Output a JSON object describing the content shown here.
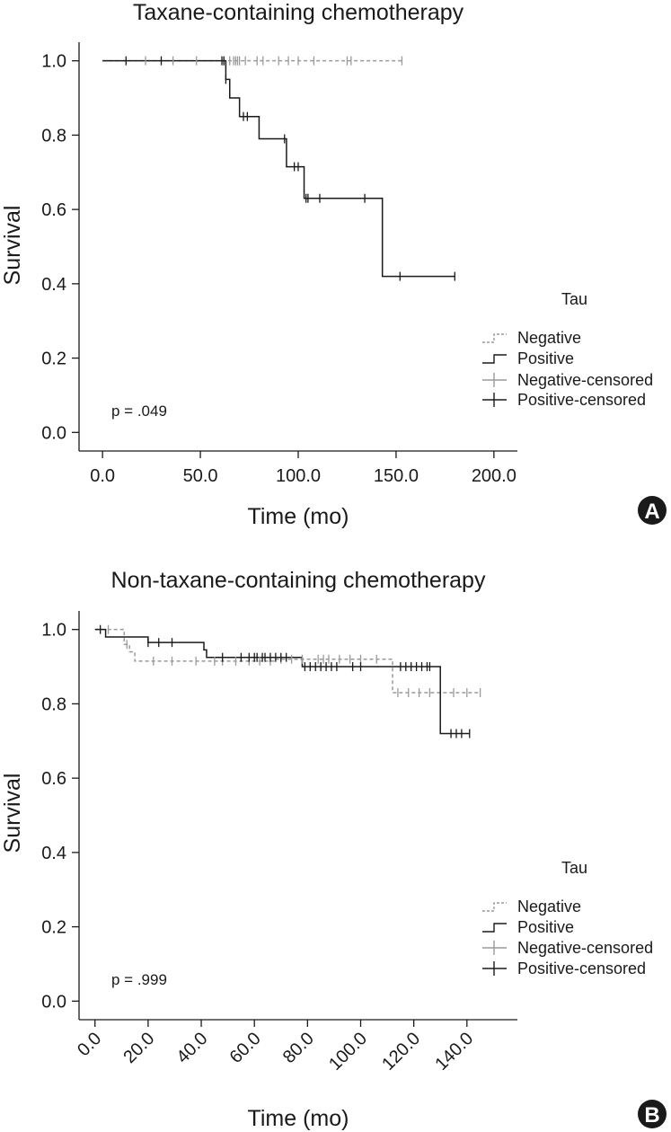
{
  "chart_data": [
    {
      "type": "line",
      "panel_label": "A",
      "title": "Taxane-containing chemotherapy",
      "xlabel": "Time (mo)",
      "ylabel": "Survival",
      "xlim": [
        -12,
        212
      ],
      "ylim": [
        -0.05,
        1.05
      ],
      "x_ticks": [
        0,
        50,
        100,
        150,
        200
      ],
      "x_tick_labels": [
        "0.0",
        "50.0",
        "100.0",
        "150.0",
        "200.0"
      ],
      "x_tick_rotated": false,
      "y_ticks": [
        0,
        0.2,
        0.4,
        0.6,
        0.8,
        1.0
      ],
      "y_tick_labels": [
        "0.0",
        "0.2",
        "0.4",
        "0.6",
        "0.8",
        "1.0"
      ],
      "legend_title": "Tau",
      "legend_position": "right",
      "p_value_text": "p = .049",
      "series": [
        {
          "name": "Negative",
          "color": "#9a9a9a",
          "dashed": true,
          "steps": [
            [
              0,
              1.0
            ],
            [
              153,
              1.0
            ]
          ],
          "censored": [
            22,
            36,
            48,
            62,
            65,
            67,
            68,
            69,
            70,
            73,
            79,
            82,
            90,
            95,
            100,
            108,
            125,
            127,
            153
          ]
        },
        {
          "name": "Positive",
          "color": "#1a1a1a",
          "dashed": false,
          "steps": [
            [
              0,
              1.0
            ],
            [
              63,
              1.0
            ],
            [
              63,
              0.95
            ],
            [
              65,
              0.95
            ],
            [
              65,
              0.9
            ],
            [
              70,
              0.9
            ],
            [
              70,
              0.85
            ],
            [
              80,
              0.85
            ],
            [
              80,
              0.79
            ],
            [
              94,
              0.79
            ],
            [
              94,
              0.715
            ],
            [
              103,
              0.715
            ],
            [
              103,
              0.63
            ],
            [
              143,
              0.63
            ],
            [
              143,
              0.42
            ],
            [
              180,
              0.42
            ]
          ],
          "censored": [
            12,
            30,
            61,
            62,
            63,
            72,
            74,
            93,
            98,
            100,
            104,
            105,
            111,
            134,
            152,
            180
          ]
        }
      ]
    },
    {
      "type": "line",
      "panel_label": "B",
      "title": "Non-taxane-containing chemotherapy",
      "xlabel": "Time (mo)",
      "ylabel": "Survival",
      "xlim": [
        -6,
        159
      ],
      "ylim": [
        -0.05,
        1.05
      ],
      "x_ticks": [
        0,
        20,
        40,
        60,
        80,
        100,
        120,
        140
      ],
      "x_tick_labels": [
        "0.0",
        "20.0",
        "40.0",
        "60.0",
        "80.0",
        "100.0",
        "120.0",
        "140.0"
      ],
      "x_tick_rotated": true,
      "y_ticks": [
        0,
        0.2,
        0.4,
        0.6,
        0.8,
        1.0
      ],
      "y_tick_labels": [
        "0.0",
        "0.2",
        "0.4",
        "0.6",
        "0.8",
        "1.0"
      ],
      "legend_title": "Tau",
      "legend_position": "right",
      "p_value_text": "p = .999",
      "series": [
        {
          "name": "Negative",
          "color": "#9a9a9a",
          "dashed": true,
          "steps": [
            [
              0,
              1.0
            ],
            [
              11,
              1.0
            ],
            [
              11,
              0.96
            ],
            [
              13,
              0.96
            ],
            [
              13,
              0.94
            ],
            [
              15,
              0.94
            ],
            [
              15,
              0.915
            ],
            [
              68,
              0.915
            ],
            [
              68,
              0.92
            ],
            [
              112,
              0.92
            ],
            [
              112,
              0.83
            ],
            [
              145,
              0.83
            ]
          ],
          "censored": [
            5,
            12,
            22,
            29,
            38,
            45,
            48,
            53,
            58,
            62,
            66,
            70,
            74,
            78,
            84,
            86,
            88,
            92,
            96,
            100,
            106,
            114,
            118,
            122,
            126,
            135,
            140,
            145
          ]
        },
        {
          "name": "Positive",
          "color": "#1a1a1a",
          "dashed": false,
          "steps": [
            [
              0,
              1.0
            ],
            [
              4,
              1.0
            ],
            [
              4,
              0.98
            ],
            [
              20,
              0.98
            ],
            [
              20,
              0.965
            ],
            [
              41,
              0.965
            ],
            [
              41,
              0.945
            ],
            [
              42,
              0.945
            ],
            [
              42,
              0.925
            ],
            [
              78,
              0.925
            ],
            [
              78,
              0.9
            ],
            [
              130,
              0.9
            ],
            [
              130,
              0.72
            ],
            [
              141,
              0.72
            ]
          ],
          "censored": [
            2,
            20,
            24,
            29,
            48,
            55,
            58,
            60,
            61,
            63,
            64,
            66,
            68,
            70,
            72,
            79,
            81,
            83,
            85,
            87,
            89,
            91,
            97,
            100,
            115,
            117,
            119,
            121,
            123,
            125,
            126,
            134,
            136,
            138,
            141
          ]
        }
      ]
    }
  ]
}
